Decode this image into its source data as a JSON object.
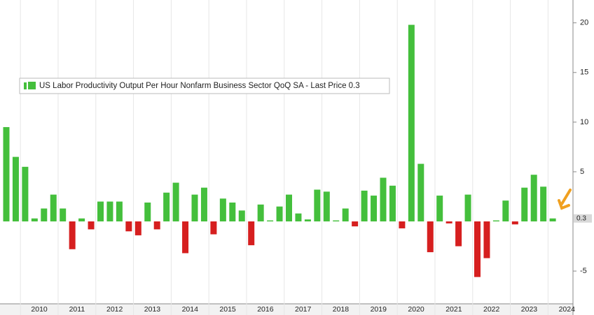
{
  "chart_data": {
    "type": "bar",
    "legend": "US Labor Productivity Output Per Hour Nonfarm Business Sector QoQ SA - Last Price 0.3",
    "categories": [
      null,
      null,
      null,
      null,
      null,
      null,
      null,
      null,
      null,
      null,
      null,
      null,
      null,
      null,
      null,
      null,
      null,
      null,
      null,
      null,
      null,
      null,
      null,
      null,
      null,
      null,
      null,
      null,
      null,
      null,
      null,
      null,
      null,
      null,
      null,
      null,
      null,
      null,
      null,
      null,
      null,
      null,
      null,
      null,
      null,
      null,
      null,
      null,
      null,
      null,
      null,
      null,
      null,
      null,
      null,
      null,
      null,
      null,
      null
    ],
    "values": [
      9.5,
      6.5,
      5.5,
      0.3,
      1.3,
      2.7,
      1.3,
      -2.8,
      0.3,
      -0.8,
      2.0,
      2.0,
      2.0,
      -1.0,
      -1.4,
      1.9,
      -0.8,
      2.9,
      3.9,
      -3.2,
      2.7,
      3.4,
      -1.3,
      2.3,
      1.9,
      1.1,
      -2.4,
      1.7,
      0.1,
      1.5,
      2.7,
      0.8,
      0.2,
      3.2,
      3.0,
      0.1,
      1.3,
      -0.5,
      3.1,
      2.6,
      4.4,
      3.6,
      -0.7,
      19.8,
      5.8,
      -3.1,
      2.6,
      -0.2,
      -2.5,
      2.7,
      -5.6,
      -3.7,
      0.1,
      2.1,
      -0.3,
      3.4,
      4.7,
      3.5,
      0.3
    ],
    "positive_color": "#44bf3c",
    "negative_color": "#d61f1f",
    "year_labels": [
      "2010",
      "2011",
      "2012",
      "2013",
      "2014",
      "2015",
      "2016",
      "2017",
      "2018",
      "2019",
      "2020",
      "2021",
      "2022",
      "2023",
      "2024"
    ],
    "ylim": [
      -8.3,
      22.3
    ],
    "yticks": [
      -5,
      5,
      10,
      15,
      20
    ],
    "last_price": 0.3
  }
}
